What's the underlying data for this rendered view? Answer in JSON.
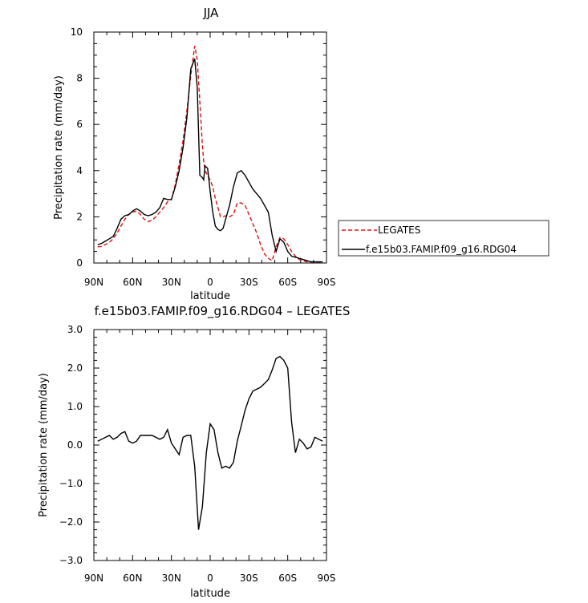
{
  "charts": [
    {
      "title": "JJA",
      "xlabel": "latitude",
      "ylabel": "Precipitation rate (mm/day)",
      "x_tick_labels": [
        "90N",
        "60N",
        "30N",
        "0",
        "30S",
        "60S",
        "90S"
      ],
      "y_tick_labels": [
        "0",
        "2",
        "4",
        "6",
        "8",
        "10"
      ],
      "legend": {
        "entries": [
          {
            "label": "LEGATES",
            "color": "#dd1111",
            "style": "dashed"
          },
          {
            "label": "f.e15b03.FAMIP.f09_g16.RDG04",
            "color": "#000000",
            "style": "solid"
          }
        ]
      }
    },
    {
      "title": "f.e15b03.FAMIP.f09_g16.RDG04 – LEGATES",
      "xlabel": "latitude",
      "ylabel": "Precipitation rate (mm/day)",
      "x_tick_labels": [
        "90N",
        "60N",
        "30N",
        "0",
        "30S",
        "60S",
        "90S"
      ],
      "y_tick_labels": [
        "−3.0",
        "−2.0",
        "−1.0",
        "0.0",
        "1.0",
        "2.0",
        "3.0"
      ]
    }
  ],
  "chart_data": [
    {
      "type": "line",
      "x_range": [
        90,
        -90
      ],
      "xlim": [
        90,
        -90
      ],
      "ylim": [
        0,
        10
      ],
      "grid": false,
      "legend_position": "right",
      "series": [
        {
          "name": "LEGATES",
          "color": "#dd1111",
          "style": "dashed",
          "x": [
            87,
            84,
            81,
            78,
            75,
            72,
            69,
            66,
            63,
            60,
            57,
            54,
            51,
            48,
            45,
            42,
            39,
            36,
            33,
            30,
            27,
            24,
            21,
            18,
            15,
            12,
            10,
            8,
            6,
            5,
            4,
            2,
            0,
            -2,
            -4,
            -6,
            -8,
            -10,
            -12,
            -15,
            -18,
            -21,
            -24,
            -27,
            -30,
            -33,
            -36,
            -39,
            -42,
            -45,
            -48,
            -51,
            -54,
            -57,
            -60,
            -63,
            -66,
            -69,
            -72,
            -75,
            -78,
            -81,
            -84,
            -87
          ],
          "y": [
            0.7,
            0.72,
            0.8,
            0.9,
            1.05,
            1.3,
            1.6,
            1.9,
            2.1,
            2.2,
            2.25,
            2.1,
            1.9,
            1.8,
            1.85,
            2.0,
            2.2,
            2.4,
            2.65,
            2.75,
            3.4,
            4.3,
            5.3,
            6.6,
            8.1,
            9.4,
            8.8,
            7.0,
            5.1,
            4.4,
            4.0,
            3.8,
            3.6,
            3.3,
            2.8,
            2.4,
            2.0,
            2.0,
            2.05,
            2.0,
            2.1,
            2.6,
            2.6,
            2.5,
            2.1,
            1.7,
            1.3,
            0.8,
            0.4,
            0.2,
            0.1,
            0.7,
            1.1,
            1.05,
            0.8,
            0.5,
            0.3,
            0.15,
            0.1,
            0.05,
            0.05,
            0.05,
            0.05,
            0.05
          ]
        },
        {
          "name": "f.e15b03.FAMIP.f09_g16.RDG04",
          "color": "#000000",
          "style": "solid",
          "x": [
            87,
            84,
            81,
            78,
            75,
            72,
            69,
            66,
            63,
            60,
            57,
            54,
            51,
            48,
            45,
            42,
            39,
            36,
            33,
            30,
            27,
            24,
            21,
            18,
            15,
            12,
            10,
            8,
            6,
            5,
            4,
            2,
            0,
            -2,
            -4,
            -6,
            -8,
            -10,
            -12,
            -15,
            -18,
            -21,
            -24,
            -27,
            -30,
            -33,
            -36,
            -39,
            -42,
            -45,
            -48,
            -51,
            -54,
            -57,
            -60,
            -63,
            -66,
            -69,
            -72,
            -75,
            -78,
            -81,
            -84,
            -87
          ],
          "y": [
            0.8,
            0.85,
            0.95,
            1.05,
            1.15,
            1.5,
            1.9,
            2.05,
            2.1,
            2.25,
            2.35,
            2.25,
            2.1,
            2.05,
            2.1,
            2.2,
            2.4,
            2.8,
            2.75,
            2.75,
            3.3,
            4.0,
            5.0,
            6.3,
            8.4,
            8.85,
            7.6,
            3.8,
            3.7,
            3.6,
            4.2,
            4.1,
            3.1,
            2.2,
            1.6,
            1.45,
            1.4,
            1.5,
            1.9,
            2.5,
            3.3,
            3.9,
            4.0,
            3.8,
            3.5,
            3.2,
            3.0,
            2.8,
            2.5,
            2.2,
            1.2,
            0.5,
            1.05,
            0.9,
            0.5,
            0.3,
            0.25,
            0.2,
            0.15,
            0.1,
            0.05,
            0.05,
            0.05,
            0.05
          ]
        }
      ]
    },
    {
      "type": "line",
      "xlim": [
        90,
        -90
      ],
      "ylim": [
        -3,
        3
      ],
      "grid": false,
      "series": [
        {
          "color": "#000000",
          "style": "solid",
          "x": [
            87,
            84,
            81,
            78,
            75,
            72,
            69,
            66,
            63,
            60,
            57,
            54,
            51,
            48,
            45,
            42,
            39,
            36,
            33,
            30,
            27,
            24,
            21,
            18,
            15,
            12,
            9,
            6,
            3,
            0,
            -3,
            -6,
            -9,
            -12,
            -15,
            -18,
            -21,
            -24,
            -27,
            -30,
            -33,
            -36,
            -39,
            -42,
            -45,
            -48,
            -51,
            -54,
            -57,
            -60,
            -63,
            -66,
            -69,
            -72,
            -75,
            -78,
            -81,
            -84,
            -87
          ],
          "y": [
            0.1,
            0.15,
            0.2,
            0.25,
            0.15,
            0.2,
            0.3,
            0.35,
            0.1,
            0.05,
            0.1,
            0.25,
            0.25,
            0.25,
            0.25,
            0.2,
            0.15,
            0.2,
            0.4,
            0.05,
            -0.1,
            -0.25,
            0.2,
            0.25,
            0.25,
            -0.55,
            -2.2,
            -1.6,
            -0.2,
            0.55,
            0.4,
            -0.2,
            -0.6,
            -0.55,
            -0.6,
            -0.45,
            0.1,
            0.5,
            0.9,
            1.2,
            1.4,
            1.45,
            1.5,
            1.6,
            1.7,
            1.95,
            2.25,
            2.3,
            2.2,
            2.0,
            0.6,
            -0.2,
            0.15,
            0.05,
            -0.1,
            -0.05,
            0.2,
            0.15,
            0.1
          ]
        }
      ]
    }
  ]
}
